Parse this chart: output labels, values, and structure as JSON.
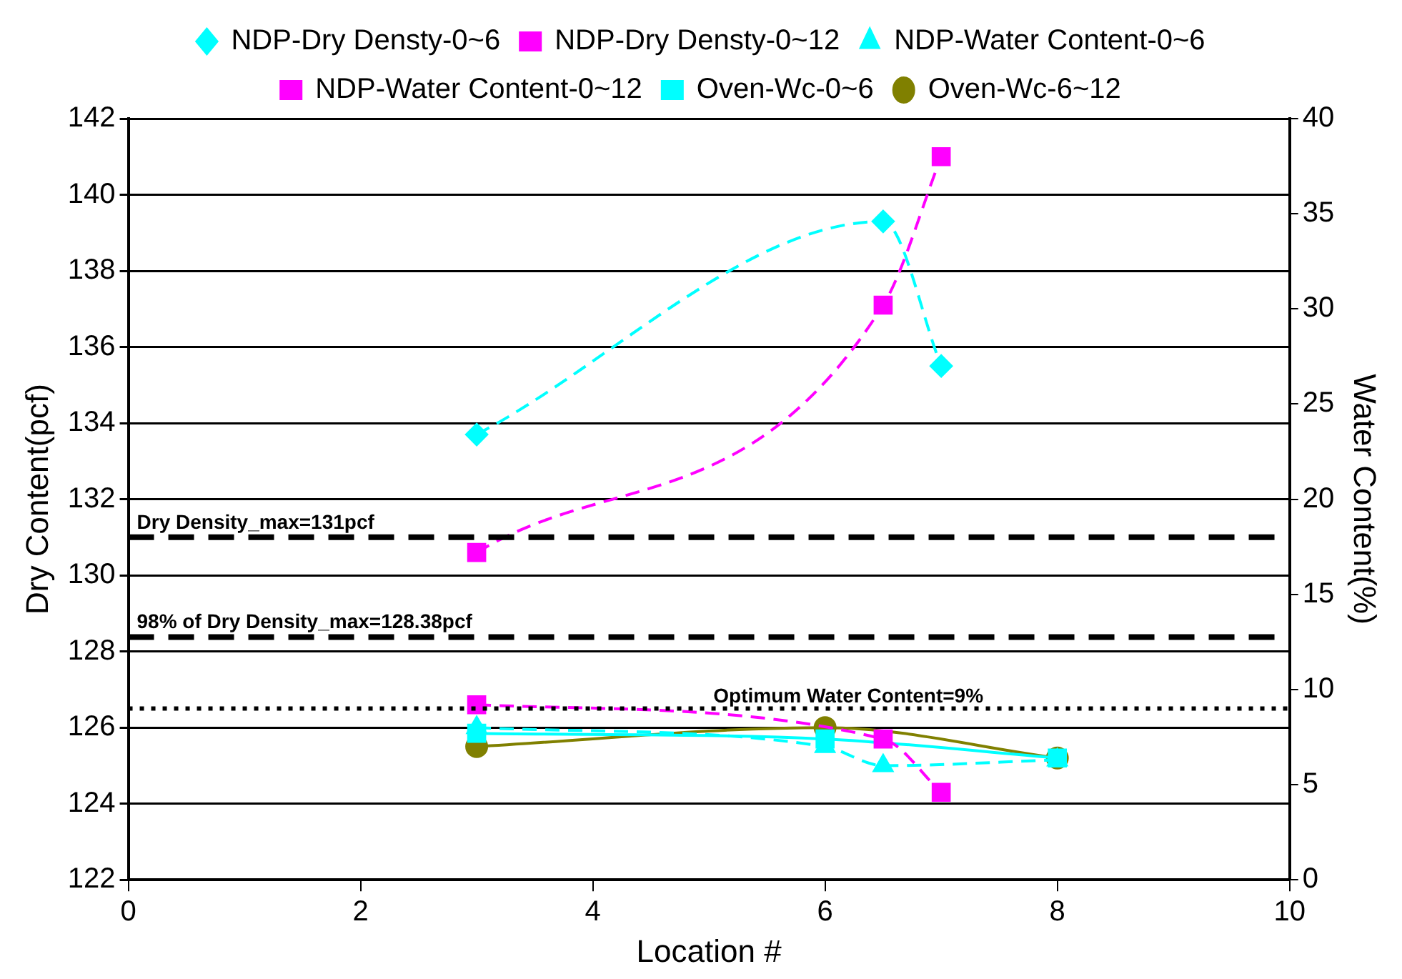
{
  "chart_data": {
    "type": "line",
    "xlabel": "Location #",
    "ylabel": "Dry Content(pcf)",
    "y2label": "Water Content(%)",
    "xlim": [
      0,
      10
    ],
    "xticks": [
      0,
      2,
      4,
      6,
      8,
      10
    ],
    "ylim": [
      122,
      142
    ],
    "yticks": [
      122,
      124,
      126,
      128,
      130,
      132,
      134,
      136,
      138,
      140,
      142
    ],
    "y2lim": [
      0,
      40
    ],
    "y2ticks": [
      0,
      5,
      10,
      15,
      20,
      25,
      30,
      35,
      40
    ],
    "grid": "y",
    "legend": "top",
    "series": [
      {
        "name": "NDP-Dry Densty-0~6",
        "color": "#00ffff",
        "marker": "diamond",
        "line_style": "dashed",
        "x": [
          3,
          6.5,
          7
        ],
        "values": [
          133.7,
          139.3,
          135.5
        ]
      },
      {
        "name": "NDP-Dry Densty-0~12",
        "color": "#ff00ff",
        "marker": "square",
        "line_style": "dashed",
        "x": [
          3,
          6.5,
          7
        ],
        "values": [
          130.6,
          137.1,
          141.0
        ]
      },
      {
        "name": "NDP-Water Content-0~6",
        "color": "#00ffff",
        "marker": "triangle",
        "line_style": "dashed",
        "axis": "y2",
        "x": [
          3,
          6,
          6.5,
          8
        ],
        "values": [
          8.0,
          7.0,
          6.0,
          6.3
        ]
      },
      {
        "name": "NDP-Water Content-0~12",
        "color": "#ff00ff",
        "marker": "square",
        "line_style": "dashed",
        "axis": "y2",
        "x": [
          3,
          6.5,
          7
        ],
        "values": [
          9.2,
          7.4,
          4.6
        ]
      },
      {
        "name": "Oven-Wc-0~6",
        "color": "#00ffff",
        "marker": "square",
        "line_style": "solid",
        "axis": "y2",
        "x": [
          3,
          6,
          8
        ],
        "values": [
          7.7,
          7.4,
          6.4
        ]
      },
      {
        "name": "Oven-Wc-6~12",
        "color": "#808000",
        "marker": "circle",
        "line_style": "solid",
        "axis": "y2",
        "x": [
          3,
          6,
          8
        ],
        "values": [
          7.0,
          8.0,
          6.4
        ]
      }
    ],
    "ref_lines": [
      {
        "axis": "y",
        "value": 131,
        "label": "Dry Density_max=131pcf",
        "line_style": "dashed",
        "color": "#000000"
      },
      {
        "axis": "y",
        "value": 128.38,
        "label": "98% of Dry Density_max=128.38pcf",
        "line_style": "dashed",
        "color": "#000000"
      },
      {
        "axis": "y2",
        "value": 9,
        "label": "Optimum Water Content=9%",
        "line_style": "dotted",
        "color": "#000000"
      }
    ]
  }
}
